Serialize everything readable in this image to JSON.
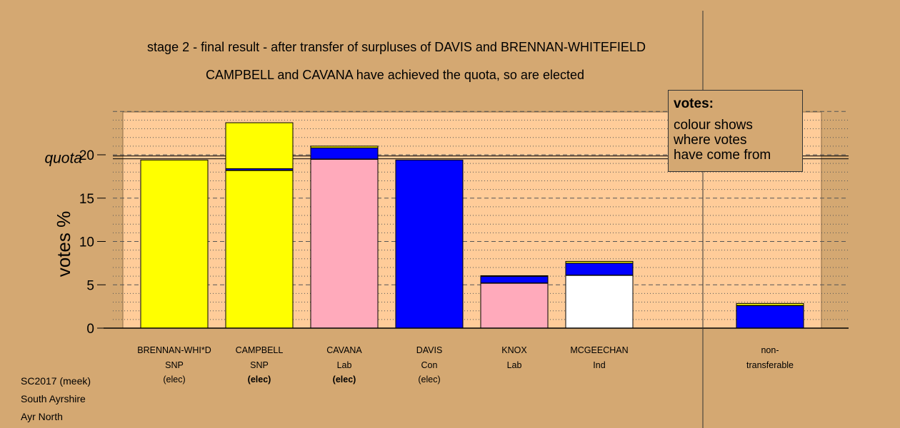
{
  "title_line1": "stage 2 - final result - after transfer of surpluses of DAVIS and BRENNAN-WHITEFIELD",
  "title_line2": "CAMPBELL and CAVANA have achieved the quota, so are elected",
  "footer": {
    "line1": "SC2017 (meek)",
    "line2": "South Ayrshire",
    "line3": "Ayr North"
  },
  "legend": {
    "title": "votes:",
    "lines": [
      "colour shows",
      "where votes",
      "have come from"
    ]
  },
  "colors": {
    "background": "#d4a872",
    "plot_bg": "#ffcc99",
    "SNP": "#ffff00",
    "Con": "#0000ff",
    "Lab": "#ffaabb",
    "Ind": "#ffffff"
  },
  "chart_data": {
    "type": "bar",
    "stacked": true,
    "ylabel": "votes %",
    "ylim": [
      0,
      25
    ],
    "yticks": [
      0,
      5,
      10,
      15,
      20
    ],
    "quota": 19.7,
    "quota_label": "quota",
    "grid": "dotted minor lines every 1, dashed major lines every 5",
    "candidates": [
      {
        "name": "BRENNAN-WHI*D",
        "party": "SNP",
        "status": "(elec)",
        "status_bold": false,
        "segments": [
          {
            "source": "SNP",
            "color": "#ffff00",
            "value": 19.4
          }
        ]
      },
      {
        "name": "CAMPBELL",
        "party": "SNP",
        "status": "(elec)",
        "status_bold": true,
        "segments": [
          {
            "source": "SNP",
            "color": "#ffff00",
            "value": 18.2
          },
          {
            "source": "Con",
            "color": "#0000ff",
            "value": 0.2
          },
          {
            "source": "SNP",
            "color": "#ffff00",
            "value": 5.3
          }
        ]
      },
      {
        "name": "CAVANA",
        "party": "Lab",
        "status": "(elec)",
        "status_bold": true,
        "segments": [
          {
            "source": "Lab",
            "color": "#ffaabb",
            "value": 19.5
          },
          {
            "source": "Con",
            "color": "#0000ff",
            "value": 1.3
          },
          {
            "source": "SNP",
            "color": "#ffff00",
            "value": 0.2
          }
        ]
      },
      {
        "name": "DAVIS",
        "party": "Con",
        "status": "(elec)",
        "status_bold": false,
        "segments": [
          {
            "source": "Con",
            "color": "#0000ff",
            "value": 19.4
          }
        ]
      },
      {
        "name": "KNOX",
        "party": "Lab",
        "status": "",
        "status_bold": false,
        "segments": [
          {
            "source": "Lab",
            "color": "#ffaabb",
            "value": 5.2
          },
          {
            "source": "Con",
            "color": "#0000ff",
            "value": 0.8
          },
          {
            "source": "SNP",
            "color": "#ffff00",
            "value": 0.05
          }
        ]
      },
      {
        "name": "MCGEECHAN",
        "party": "Ind",
        "status": "",
        "status_bold": false,
        "segments": [
          {
            "source": "Ind",
            "color": "#ffffff",
            "value": 6.1
          },
          {
            "source": "Con",
            "color": "#0000ff",
            "value": 1.4
          },
          {
            "source": "SNP",
            "color": "#ffff00",
            "value": 0.2
          }
        ]
      }
    ],
    "nontransferable": {
      "label1": "non-",
      "label2": "transferable",
      "segments": [
        {
          "source": "Con",
          "color": "#0000ff",
          "value": 2.6
        },
        {
          "source": "SNP",
          "color": "#ffff00",
          "value": 0.25
        }
      ]
    }
  }
}
